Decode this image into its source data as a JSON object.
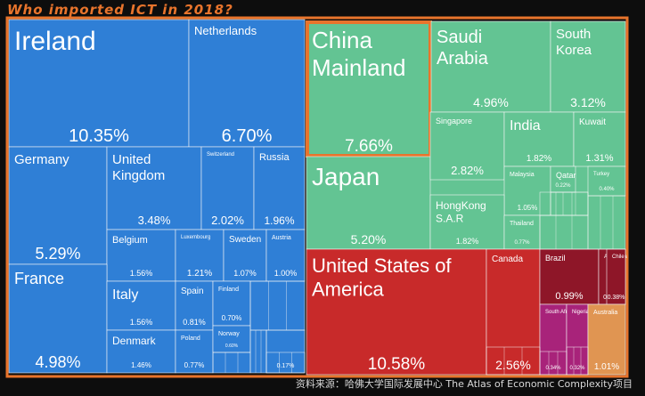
{
  "title": "Who imported ICT in 2018?",
  "source": "资料来源：哈佛大学国际发展中心 The Atlas of Economic Complexity项目",
  "colors": {
    "europe": "#2f7fd6",
    "asia": "#63c493",
    "americas": "#c82a2a",
    "americas_dark": "#8e1628",
    "africa": "#a8237a",
    "oceania": "#e09552",
    "highlight": "#e8742c",
    "tile_border": "#f5f5f5"
  },
  "chart_data": {
    "type": "treemap",
    "title": "Who imported ICT in 2018?",
    "unit": "%",
    "items": [
      {
        "name": "Ireland",
        "value": 10.35,
        "region": "europe"
      },
      {
        "name": "Netherlands",
        "value": 6.7,
        "region": "europe"
      },
      {
        "name": "Germany",
        "value": 5.29,
        "region": "europe"
      },
      {
        "name": "United Kingdom",
        "value": 3.48,
        "region": "europe"
      },
      {
        "name": "Switzerland",
        "value": 2.02,
        "region": "europe"
      },
      {
        "name": "Russia",
        "value": 1.96,
        "region": "europe"
      },
      {
        "name": "Belgium",
        "value": 1.56,
        "region": "europe"
      },
      {
        "name": "Luxembourg",
        "value": 1.21,
        "region": "europe"
      },
      {
        "name": "Sweden",
        "value": 1.07,
        "region": "europe"
      },
      {
        "name": "Austria",
        "value": 1.0,
        "region": "europe"
      },
      {
        "name": "France",
        "value": 4.98,
        "region": "europe"
      },
      {
        "name": "Italy",
        "value": 1.56,
        "region": "europe"
      },
      {
        "name": "Spain",
        "value": 0.81,
        "region": "europe"
      },
      {
        "name": "Finland",
        "value": 0.7,
        "region": "europe"
      },
      {
        "name": "Denmark",
        "value": 1.46,
        "region": "europe"
      },
      {
        "name": "Poland",
        "value": 0.77,
        "region": "europe"
      },
      {
        "name": "Norway",
        "value": 0.6,
        "region": "europe"
      },
      {
        "name": "",
        "value": 0.17,
        "region": "europe"
      },
      {
        "name": "China Mainland",
        "value": 7.66,
        "region": "asia",
        "highlight": true
      },
      {
        "name": "Saudi Arabia",
        "value": 4.96,
        "region": "asia"
      },
      {
        "name": "South Korea",
        "value": 3.12,
        "region": "asia"
      },
      {
        "name": "Japan",
        "value": 5.2,
        "region": "asia"
      },
      {
        "name": "Singapore",
        "value": 2.82,
        "region": "asia"
      },
      {
        "name": "India",
        "value": 1.82,
        "region": "asia"
      },
      {
        "name": "Kuwait",
        "value": 1.31,
        "region": "asia"
      },
      {
        "name": "Malaysia",
        "value": 1.05,
        "region": "asia"
      },
      {
        "name": "Qatar",
        "value": 0.22,
        "region": "asia"
      },
      {
        "name": "Turkey",
        "value": 0.4,
        "region": "asia"
      },
      {
        "name": "Hong Kong S.A.R",
        "value": 1.82,
        "region": "asia"
      },
      {
        "name": "Thailand",
        "value": 0.77,
        "region": "asia"
      },
      {
        "name": "United States of America",
        "value": 10.58,
        "region": "americas"
      },
      {
        "name": "Canada",
        "value": 2.56,
        "region": "americas"
      },
      {
        "name": "Brazil",
        "value": 0.99,
        "region": "americas"
      },
      {
        "name": "Argentina",
        "value": 0.5,
        "region": "americas"
      },
      {
        "name": "Chile",
        "value": 0.38,
        "region": "americas"
      },
      {
        "name": "South Africa",
        "value": 0.34,
        "region": "africa"
      },
      {
        "name": "Nigeria",
        "value": 0.32,
        "region": "africa"
      },
      {
        "name": "Australia",
        "value": 1.01,
        "region": "oceania"
      }
    ]
  }
}
